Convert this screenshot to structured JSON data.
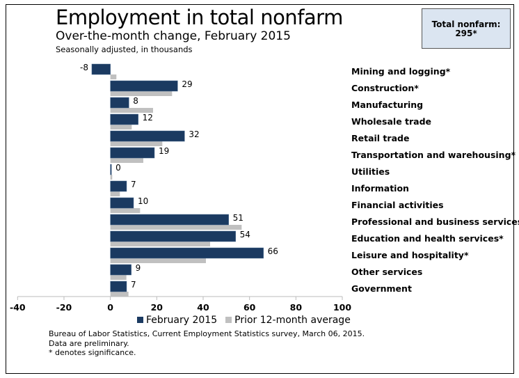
{
  "chart_data": {
    "type": "bar",
    "orientation": "horizontal",
    "title": "Employment in total nonfarm",
    "subtitle": "Over-the-month change, February 2015",
    "unit_note": "Seasonally adjusted, in thousands",
    "categories": [
      "Mining and logging*",
      "Construction*",
      "Manufacturing",
      "Wholesale trade",
      "Retail trade",
      "Transportation and warehousing*",
      "Utilities",
      "Information",
      "Financial activities",
      "Professional and business services*",
      "Education and health services*",
      "Leisure and hospitality*",
      "Other services",
      "Government"
    ],
    "series": [
      {
        "name": "February 2015",
        "color": "#1b3a61",
        "values": [
          -8,
          29,
          8,
          12,
          32,
          19,
          0,
          7,
          10,
          51,
          54,
          66,
          9,
          7
        ],
        "labels": [
          "-8",
          "29",
          "8",
          "12",
          "32",
          "19",
          "0",
          "7",
          "10",
          "51",
          "54",
          "66",
          "9",
          "7"
        ]
      },
      {
        "name": "Prior 12-month average",
        "color": "#c0c0c0",
        "values": [
          2.6,
          26.6,
          18.4,
          9.2,
          22.4,
          14.2,
          0.8,
          4.1,
          12.8,
          56.6,
          43,
          41.2,
          6.9,
          7.8
        ]
      }
    ],
    "xlim": [
      -40,
      100
    ],
    "xticks": [
      "-40",
      "-20",
      "0",
      "20",
      "40",
      "60",
      "80",
      "100"
    ],
    "grid": false,
    "legend": "bottom"
  },
  "total_box": {
    "label": "Total nonfarm:",
    "value": "295*"
  },
  "notes": [
    "Bureau of Labor Statistics, Current Employment Statistics survey, March 06, 2015.",
    "Data are preliminary.",
    "* denotes significance."
  ]
}
